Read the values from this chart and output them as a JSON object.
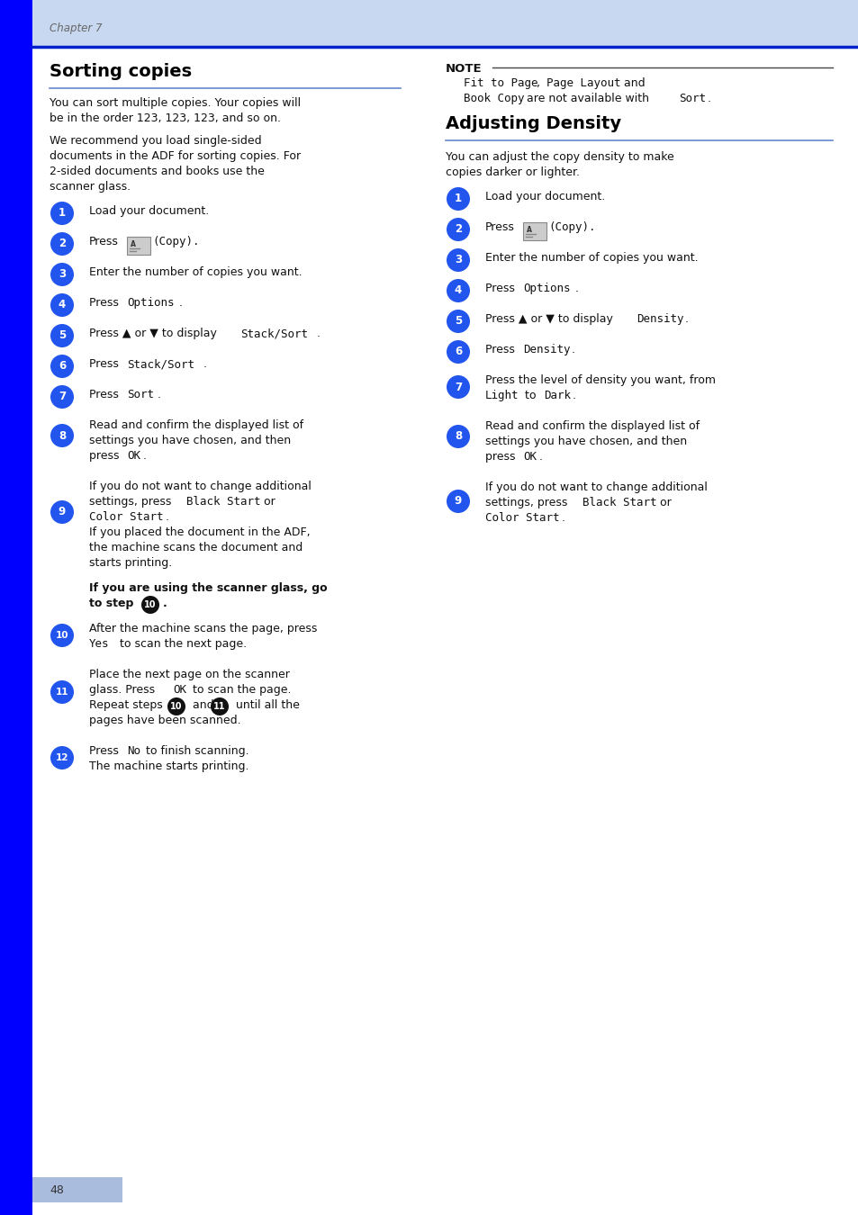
{
  "page_bg": "#ffffff",
  "header_bg": "#c8d8f0",
  "blue_bar_color": "#0000dd",
  "left_bar_color": "#0000ff",
  "chapter_text": "Chapter 7",
  "page_number": "48",
  "title1": "Sorting copies",
  "title2": "Adjusting Density",
  "circle_blue": "#2255ee",
  "circle_black": "#111111",
  "text_color": "#111111",
  "mono_color": "#333333",
  "header_line_color": "#0022cc",
  "title_line_color": "#6688cc",
  "note_line_color": "#444444"
}
